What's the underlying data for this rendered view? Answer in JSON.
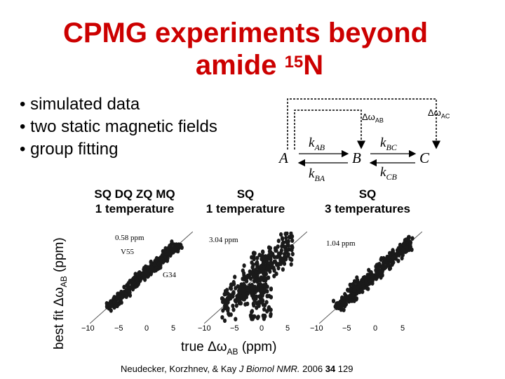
{
  "title": {
    "line1": "CPMG experiments beyond",
    "line2_prefix": "amide ",
    "line2_sup": "15",
    "line2_suffix": "N"
  },
  "bullets": [
    "simulated data",
    "two static magnetic fields",
    "group fitting"
  ],
  "scheme": {
    "nodes": [
      "A",
      "B",
      "C"
    ],
    "k_ab": {
      "k": "k",
      "sub": "AB"
    },
    "k_ba": {
      "k": "k",
      "sub": "BA"
    },
    "k_bc": {
      "k": "k",
      "sub": "BC"
    },
    "k_cb": {
      "k": "k",
      "sub": "CB"
    },
    "dw_ab": {
      "main": "Δω",
      "sub": "AB"
    },
    "dw_ac": {
      "main": "Δω",
      "sub": "AC"
    }
  },
  "y_axis_label": {
    "main": "best fit Δω",
    "sub": "AB",
    "suffix": " (ppm)"
  },
  "x_axis_label": {
    "main": "true Δω",
    "sub": "AB",
    "suffix": " (ppm)"
  },
  "panels": [
    {
      "heading_line1": "SQ DQ ZQ MQ",
      "heading_line2": "1 temperature",
      "rmsd": "0.58 ppm",
      "annotations": [
        "V55",
        "G34"
      ],
      "ticks": [
        "−10",
        "−5",
        "0",
        "5"
      ]
    },
    {
      "heading_line1": "SQ",
      "heading_line2": "1 temperature",
      "rmsd": "3.04 ppm",
      "annotations": [],
      "ticks": [
        "−10",
        "−5",
        "0",
        "5"
      ]
    },
    {
      "heading_line1": "SQ",
      "heading_line2": "3 temperatures",
      "rmsd": "1.04 ppm",
      "annotations": [],
      "ticks": [
        "−10",
        "−5",
        "0",
        "5"
      ]
    }
  ],
  "citation": {
    "authors": "Neudecker, Korzhnev, & Kay ",
    "journal": "J Biomol NMR.",
    "year": " 2006 ",
    "volume": "34",
    "pages": " 129"
  }
}
